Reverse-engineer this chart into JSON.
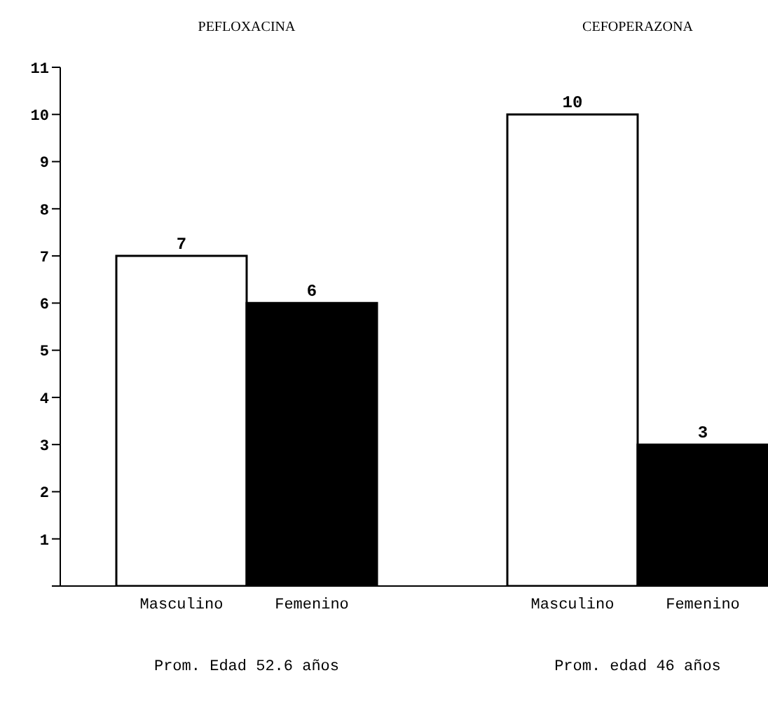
{
  "chart_data": {
    "type": "bar",
    "categories": [
      "Masculino",
      "Femenino",
      null,
      "Masculino",
      "Femenino"
    ],
    "values": [
      7,
      6,
      null,
      10,
      3
    ],
    "colors": [
      "#ffffff",
      "#000000",
      "#ffffff",
      "#ffffff",
      "#000000"
    ],
    "ylim": [
      0,
      11
    ],
    "yticks": [
      {
        "value": 0,
        "label": null
      },
      1,
      2,
      3,
      4,
      5,
      6,
      7,
      8,
      9,
      10,
      11
    ],
    "data_labels": true,
    "grid": false,
    "legend": false,
    "annotations": [
      "PEFLOXACINA",
      "CEFOPERAZONA",
      "Prom. Edad 52.6 años",
      "Prom. edad 46 años"
    ]
  }
}
